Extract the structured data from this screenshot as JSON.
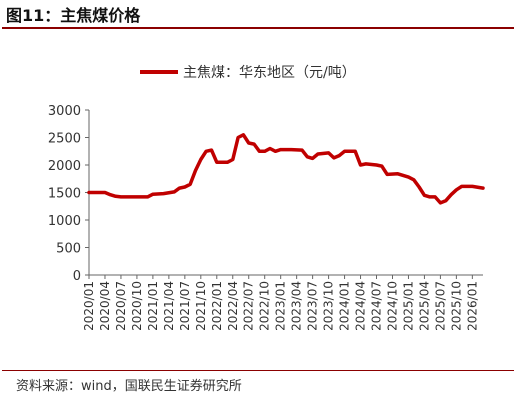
{
  "figure_title": "图11：主焦煤价格",
  "source": "资料来源：wind，国联民生证券研究所",
  "colors": {
    "series": "#c00000",
    "rule": "#8b0000"
  },
  "chart_data": {
    "type": "line",
    "title": "",
    "xlabel": "",
    "ylabel": "",
    "legend": "top-center",
    "grid": false,
    "ylim": [
      0,
      3000
    ],
    "yticks": [
      0,
      500,
      1000,
      1500,
      2000,
      2500,
      3000
    ],
    "xlim": [
      "2020-01",
      "2026-03"
    ],
    "xticks": [
      "2020/01",
      "2020/04",
      "2020/07",
      "2020/10",
      "2021/01",
      "2021/04",
      "2021/07",
      "2021/10",
      "2022/01",
      "2022/04",
      "2022/07",
      "2022/10",
      "2023/01",
      "2023/04",
      "2023/07",
      "2023/10",
      "2024/01",
      "2024/04",
      "2024/07",
      "2024/10",
      "2025/01",
      "2025/04",
      "2025/07",
      "2025/10",
      "2026/01"
    ],
    "series": [
      {
        "name": "主焦煤：华东地区（元/吨）",
        "color": "#c00000",
        "points": [
          [
            "2020-01",
            1500
          ],
          [
            "2020-04",
            1500
          ],
          [
            "2020-05",
            1460
          ],
          [
            "2020-06",
            1430
          ],
          [
            "2020-07",
            1420
          ],
          [
            "2020-10",
            1420
          ],
          [
            "2020-12",
            1420
          ],
          [
            "2021-01",
            1470
          ],
          [
            "2021-03",
            1480
          ],
          [
            "2021-05",
            1510
          ],
          [
            "2021-06",
            1580
          ],
          [
            "2021-07",
            1600
          ],
          [
            "2021-08",
            1650
          ],
          [
            "2021-09",
            1900
          ],
          [
            "2021-10",
            2100
          ],
          [
            "2021-11",
            2250
          ],
          [
            "2021-12",
            2270
          ],
          [
            "2022-01",
            2050
          ],
          [
            "2022-03",
            2050
          ],
          [
            "2022-04",
            2100
          ],
          [
            "2022-05",
            2500
          ],
          [
            "2022-06",
            2550
          ],
          [
            "2022-07",
            2400
          ],
          [
            "2022-08",
            2380
          ],
          [
            "2022-09",
            2250
          ],
          [
            "2022-10",
            2250
          ],
          [
            "2022-11",
            2300
          ],
          [
            "2022-12",
            2250
          ],
          [
            "2023-01",
            2280
          ],
          [
            "2023-03",
            2280
          ],
          [
            "2023-05",
            2270
          ],
          [
            "2023-06",
            2150
          ],
          [
            "2023-07",
            2120
          ],
          [
            "2023-08",
            2200
          ],
          [
            "2023-10",
            2220
          ],
          [
            "2023-11",
            2130
          ],
          [
            "2023-12",
            2170
          ],
          [
            "2024-01",
            2250
          ],
          [
            "2024-03",
            2250
          ],
          [
            "2024-04",
            2000
          ],
          [
            "2024-05",
            2020
          ],
          [
            "2024-07",
            2000
          ],
          [
            "2024-08",
            1980
          ],
          [
            "2024-09",
            1830
          ],
          [
            "2024-11",
            1840
          ],
          [
            "2025-01",
            1780
          ],
          [
            "2025-02",
            1730
          ],
          [
            "2025-03",
            1600
          ],
          [
            "2025-04",
            1450
          ],
          [
            "2025-05",
            1420
          ],
          [
            "2025-06",
            1420
          ],
          [
            "2025-07",
            1310
          ],
          [
            "2025-08",
            1350
          ],
          [
            "2025-09",
            1460
          ],
          [
            "2025-10",
            1550
          ],
          [
            "2025-11",
            1610
          ],
          [
            "2026-01",
            1610
          ],
          [
            "2026-03",
            1580
          ]
        ]
      }
    ]
  }
}
